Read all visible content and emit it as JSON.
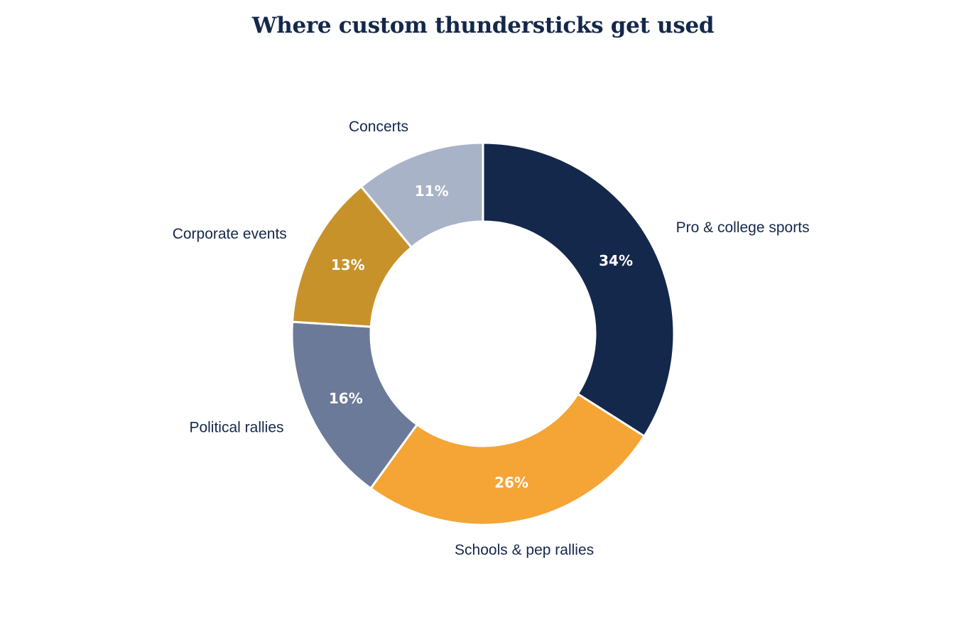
{
  "chart_data": {
    "type": "pie",
    "variant": "donut",
    "title": "Where custom thundersticks get used",
    "value_format": "percent",
    "start_angle": "12 o'clock",
    "direction": "clockwise",
    "slices": [
      {
        "label": "Pro & college sports",
        "value": 34,
        "value_label": "34%",
        "color": "#14284b"
      },
      {
        "label": "Schools & pep rallies",
        "value": 26,
        "value_label": "26%",
        "color": "#f4a535"
      },
      {
        "label": "Political rallies",
        "value": 16,
        "value_label": "16%",
        "color": "#6b7a99"
      },
      {
        "label": "Corporate events",
        "value": 13,
        "value_label": "13%",
        "color": "#c8922b"
      },
      {
        "label": "Concerts",
        "value": 11,
        "value_label": "11%",
        "color": "#a9b3c7"
      }
    ]
  }
}
